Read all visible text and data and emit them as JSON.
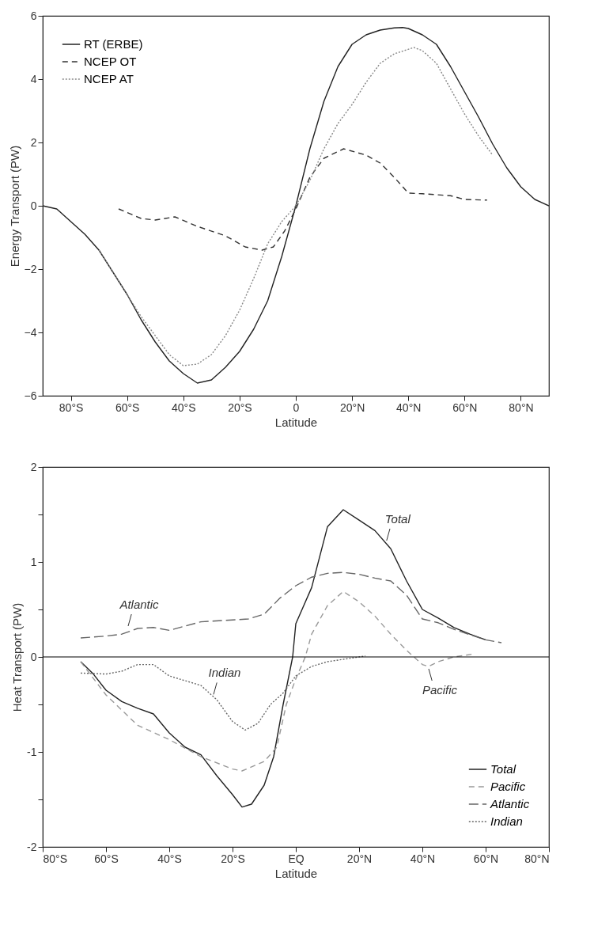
{
  "chart_data": [
    {
      "type": "line",
      "xlabel": "Latitude",
      "ylabel": "Energy Transport (PW)",
      "xlim": [
        -90,
        90
      ],
      "ylim": [
        -6,
        6
      ],
      "xticks": [
        {
          "value": -80,
          "label": "80°S"
        },
        {
          "value": -60,
          "label": "60°S"
        },
        {
          "value": -40,
          "label": "40°S"
        },
        {
          "value": -20,
          "label": "20°S"
        },
        0,
        {
          "value": 20,
          "label": "20°N"
        },
        {
          "value": 40,
          "label": "40°N"
        },
        {
          "value": 60,
          "label": "60°N"
        },
        {
          "value": 80,
          "label": "80°N"
        }
      ],
      "yticks": [
        -6,
        -4,
        -2,
        0,
        2,
        4,
        6
      ],
      "grid": false,
      "legend": "top left",
      "series": [
        {
          "name": "RT (ERBE)",
          "color": "#222222",
          "line_style": "solid",
          "x": [
            -90,
            -85,
            -80,
            -75,
            -70,
            -65,
            -60,
            -55,
            -50,
            -45,
            -40,
            -35,
            -30,
            -25,
            -20,
            -15,
            -10,
            -5,
            0,
            5,
            10,
            15,
            20,
            25,
            30,
            35,
            38,
            40,
            45,
            50,
            55,
            60,
            65,
            70,
            75,
            80,
            85,
            90
          ],
          "values": [
            0,
            -0.1,
            -0.5,
            -0.9,
            -1.4,
            -2.1,
            -2.8,
            -3.6,
            -4.3,
            -4.9,
            -5.3,
            -5.6,
            -5.5,
            -5.1,
            -4.6,
            -3.9,
            -3.0,
            -1.6,
            0,
            1.8,
            3.3,
            4.4,
            5.1,
            5.4,
            5.55,
            5.62,
            5.63,
            5.6,
            5.4,
            5.1,
            4.4,
            3.6,
            2.8,
            1.95,
            1.2,
            0.6,
            0.2,
            0
          ]
        },
        {
          "name": "NCEP OT",
          "color": "#333333",
          "line_style": "dashed",
          "x": [
            -63,
            -55,
            -50,
            -43,
            -35,
            -25,
            -18,
            -12,
            -8,
            -4,
            0,
            5,
            10,
            17,
            25,
            30,
            35,
            40,
            45,
            55,
            60,
            68
          ],
          "values": [
            -0.1,
            -0.4,
            -0.45,
            -0.35,
            -0.65,
            -0.95,
            -1.3,
            -1.4,
            -1.3,
            -0.8,
            -0.1,
            0.9,
            1.5,
            1.8,
            1.6,
            1.35,
            0.9,
            0.4,
            0.38,
            0.32,
            0.2,
            0.18
          ]
        },
        {
          "name": "NCEP AT",
          "color": "#888888",
          "line_style": "dotted",
          "x": [
            -70,
            -65,
            -60,
            -55,
            -50,
            -45,
            -40,
            -35,
            -30,
            -25,
            -20,
            -15,
            -10,
            -5,
            0,
            5,
            10,
            15,
            20,
            25,
            30,
            35,
            42,
            45,
            50,
            55,
            60,
            65,
            70
          ],
          "values": [
            -1.4,
            -2.1,
            -2.8,
            -3.5,
            -4.1,
            -4.7,
            -5.05,
            -5.0,
            -4.7,
            -4.1,
            -3.3,
            -2.3,
            -1.2,
            -0.5,
            0,
            0.8,
            1.8,
            2.6,
            3.2,
            3.9,
            4.5,
            4.8,
            5.0,
            4.9,
            4.5,
            3.7,
            2.9,
            2.2,
            1.6
          ]
        }
      ]
    },
    {
      "type": "line",
      "xlabel": "Latitude",
      "ylabel": "Heat Transport (PW)",
      "xlim": [
        -80,
        80
      ],
      "ylim": [
        -2,
        2
      ],
      "xticks": [
        {
          "value": -80,
          "label": "80°S"
        },
        {
          "value": -60,
          "label": "60°S"
        },
        {
          "value": -40,
          "label": "40°S"
        },
        {
          "value": -20,
          "label": "20°S"
        },
        {
          "value": 0,
          "label": "EQ"
        },
        {
          "value": 20,
          "label": "20°N"
        },
        {
          "value": 40,
          "label": "40°N"
        },
        {
          "value": 60,
          "label": "60°N"
        },
        {
          "value": 80,
          "label": "80°N"
        }
      ],
      "yticks": [
        -2,
        {
          "value": -1.5,
          "label": null
        },
        -1,
        {
          "value": -0.5,
          "label": null
        },
        0,
        {
          "value": 0.5,
          "label": null
        },
        1,
        {
          "value": 1.5,
          "label": null
        },
        2
      ],
      "grid": false,
      "legend": "bottom right",
      "ref_lines": [
        {
          "axis": "y",
          "value": 0,
          "color": "#000000"
        }
      ],
      "annotations": [
        {
          "text": "Total",
          "x": 28.7,
          "y": 1.2
        },
        {
          "text": "Atlantic",
          "x": -53,
          "y": 0.3
        },
        {
          "text": "Indian",
          "x": -26,
          "y": -0.42
        },
        {
          "text": "Pacific",
          "x": 42,
          "y": -0.1
        }
      ],
      "series": [
        {
          "name": "Total",
          "color": "#222222",
          "line_style": "solid",
          "x": [
            -68,
            -64,
            -60,
            -55,
            -50,
            -45,
            -40,
            -35,
            -30,
            -25,
            -20,
            -17,
            -14,
            -10,
            -7,
            -4,
            -1,
            0,
            5,
            10,
            15,
            20,
            25,
            30,
            35,
            40,
            45,
            50,
            55,
            60
          ],
          "values": [
            -0.05,
            -0.18,
            -0.35,
            -0.47,
            -0.54,
            -0.6,
            -0.8,
            -0.95,
            -1.03,
            -1.25,
            -1.45,
            -1.58,
            -1.55,
            -1.35,
            -1.05,
            -0.5,
            0,
            0.35,
            0.73,
            1.37,
            1.55,
            1.44,
            1.33,
            1.14,
            0.8,
            0.5,
            0.41,
            0.31,
            0.24,
            0.18
          ]
        },
        {
          "name": "Pacific",
          "color": "#999999",
          "line_style": "dashed",
          "x": [
            -68,
            -60,
            -50,
            -40,
            -30,
            -20,
            -17,
            -10,
            -6,
            -3,
            0,
            3,
            5,
            10,
            15,
            20,
            25,
            30,
            35,
            40,
            42,
            45,
            50,
            56
          ],
          "values": [
            -0.05,
            -0.4,
            -0.72,
            -0.87,
            -1.05,
            -1.18,
            -1.2,
            -1.1,
            -0.95,
            -0.5,
            -0.23,
            0,
            0.24,
            0.54,
            0.69,
            0.58,
            0.43,
            0.24,
            0.07,
            -0.08,
            -0.1,
            -0.05,
            0,
            0.03
          ]
        },
        {
          "name": "Atlantic",
          "color": "#666666",
          "line_style": "longdash",
          "x": [
            -68,
            -60,
            -55,
            -50,
            -45,
            -40,
            -30,
            -20,
            -15,
            -10,
            -5,
            0,
            5,
            10,
            15,
            20,
            25,
            30,
            35,
            40,
            45,
            50,
            60,
            65
          ],
          "values": [
            0.2,
            0.22,
            0.24,
            0.3,
            0.31,
            0.28,
            0.37,
            0.39,
            0.4,
            0.45,
            0.62,
            0.75,
            0.84,
            0.88,
            0.89,
            0.87,
            0.83,
            0.8,
            0.65,
            0.4,
            0.36,
            0.29,
            0.18,
            0.15
          ]
        },
        {
          "name": "Indian",
          "color": "#666666",
          "line_style": "dotted",
          "x": [
            -68,
            -60,
            -55,
            -50,
            -45,
            -40,
            -35,
            -30,
            -25,
            -20,
            -16,
            -12,
            -8,
            -4,
            0,
            5,
            10,
            20,
            22
          ],
          "values": [
            -0.17,
            -0.18,
            -0.15,
            -0.08,
            -0.08,
            -0.2,
            -0.25,
            -0.3,
            -0.45,
            -0.68,
            -0.77,
            -0.7,
            -0.5,
            -0.38,
            -0.2,
            -0.1,
            -0.05,
            0,
            0.01
          ]
        }
      ]
    }
  ]
}
